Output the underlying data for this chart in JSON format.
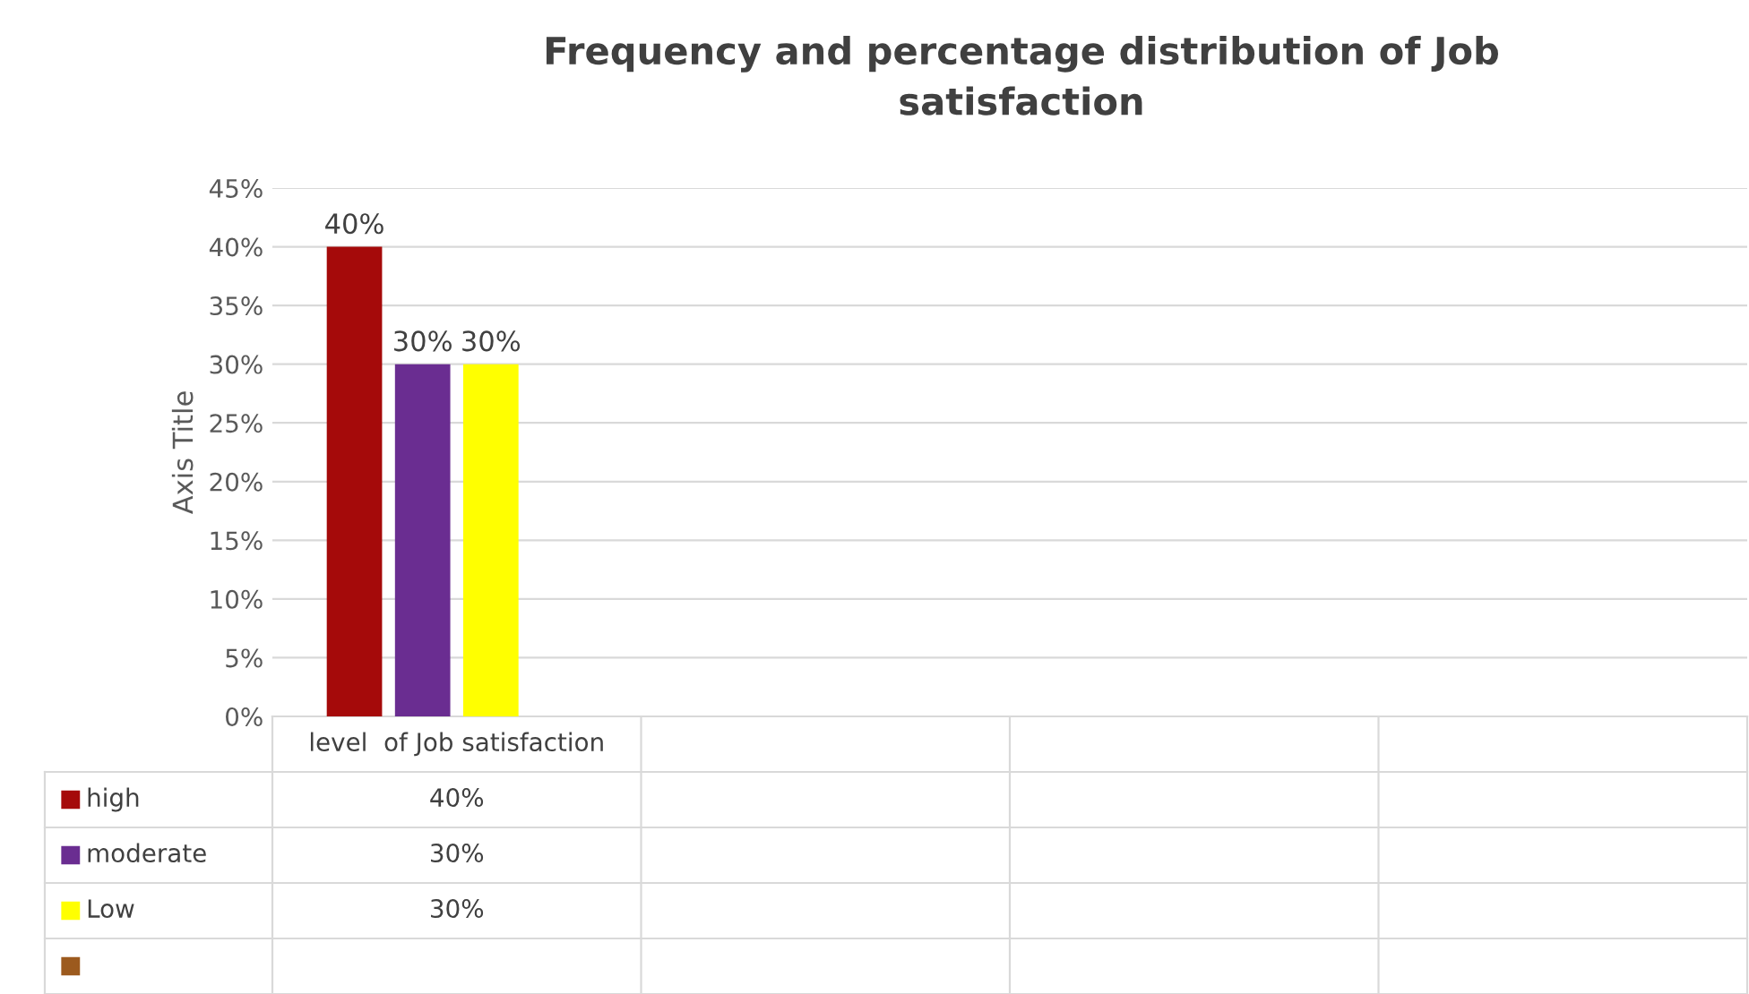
{
  "chart_data": {
    "type": "bar",
    "title": "Frequency and percentage distribution of Job\nsatisfaction",
    "ylabel": "Axis Title",
    "categories": [
      "level  of Job satisfaction",
      null,
      null,
      null
    ],
    "series": [
      {
        "name": "high",
        "color": "#a50a0a",
        "values": [
          40,
          null,
          null,
          null
        ],
        "value_labels": [
          "40%",
          null,
          null,
          null
        ]
      },
      {
        "name": "moderate",
        "color": "#6a2d91",
        "values": [
          30,
          null,
          null,
          null
        ],
        "value_labels": [
          "30%",
          null,
          null,
          null
        ]
      },
      {
        "name": "Low",
        "color": "#ffff00",
        "values": [
          30,
          null,
          null,
          null
        ],
        "value_labels": [
          "30%",
          null,
          null,
          null
        ]
      },
      {
        "color": "#9c5a1e",
        "values": [
          null,
          null,
          null,
          null
        ]
      }
    ],
    "ylim": [
      0,
      45
    ],
    "yticks": [
      {
        "value": 0,
        "label": "0%"
      },
      {
        "value": 5,
        "label": "5%"
      },
      {
        "value": 10,
        "label": "10%"
      },
      {
        "value": 15,
        "label": "15%"
      },
      {
        "value": 20,
        "label": "20%"
      },
      {
        "value": 25,
        "label": "25%"
      },
      {
        "value": 30,
        "label": "30%"
      },
      {
        "value": 35,
        "label": "35%"
      },
      {
        "value": 40,
        "label": "40%"
      },
      {
        "value": 45,
        "label": "45%"
      }
    ],
    "grid": "y",
    "legend": "bottom left"
  }
}
